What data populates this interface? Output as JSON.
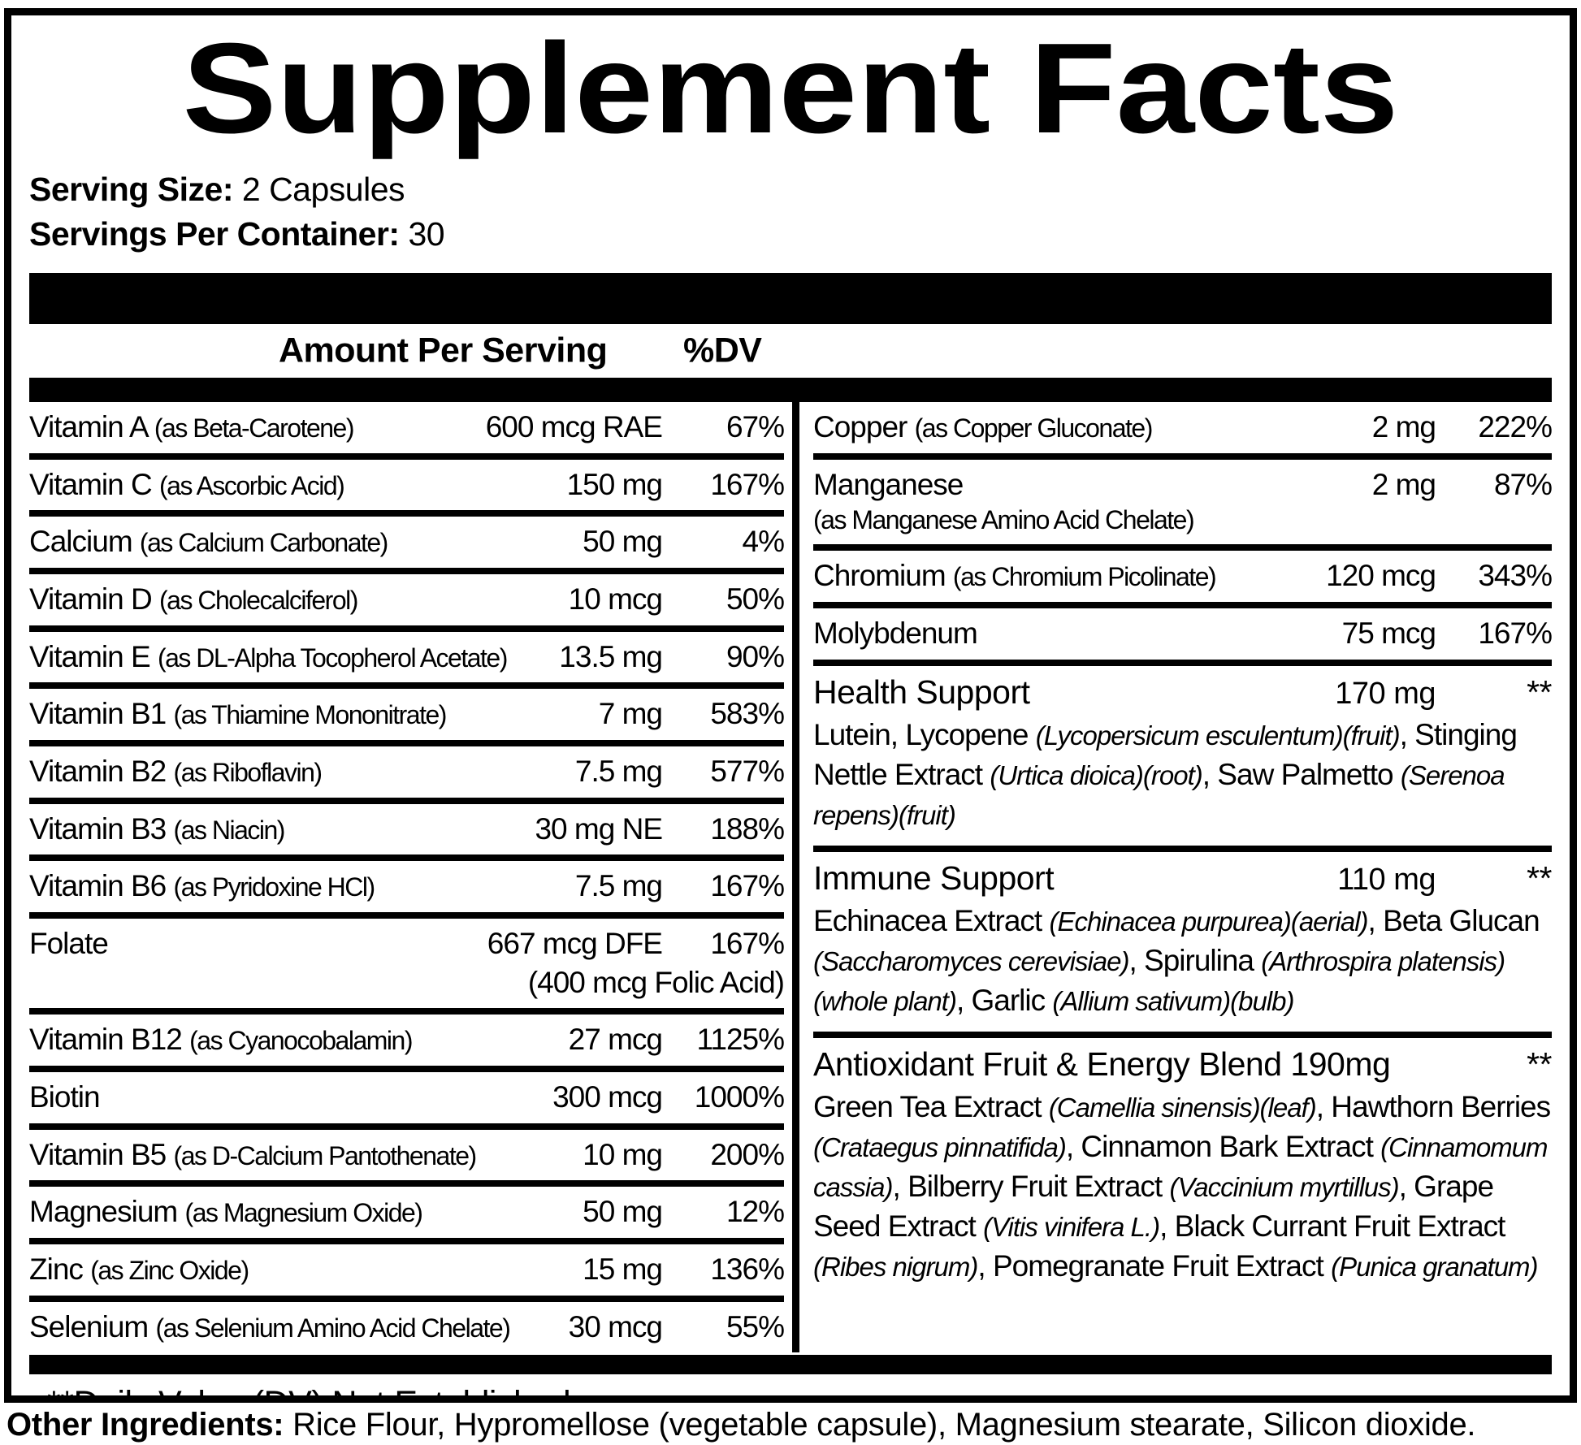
{
  "title": "Supplement Facts",
  "serving": {
    "size_label": "Serving Size:",
    "size_value": " 2 Capsules",
    "container_label": "Servings Per Container:",
    "container_value": " 30"
  },
  "table_header": {
    "amount": "Amount Per Serving",
    "dv": "%DV"
  },
  "left_column": [
    {
      "name": "Vitamin A",
      "note": "(as Beta-Carotene)",
      "amount": "600 mcg RAE",
      "dv": "67%"
    },
    {
      "name": "Vitamin C",
      "note": "(as Ascorbic Acid)",
      "amount": "150 mg",
      "dv": "167%"
    },
    {
      "name": "Calcium",
      "note": "(as Calcium Carbonate)",
      "amount": "50 mg",
      "dv": "4%"
    },
    {
      "name": "Vitamin D",
      "note": "(as Cholecalciferol)",
      "amount": "10 mcg",
      "dv": "50%"
    },
    {
      "name": "Vitamin E",
      "note": "(as DL-Alpha Tocopherol Acetate)",
      "amount": "13.5 mg",
      "dv": "90%"
    },
    {
      "name": "Vitamin B1",
      "note": "(as Thiamine Mononitrate)",
      "amount": "7 mg",
      "dv": "583%"
    },
    {
      "name": "Vitamin B2",
      "note": "(as Riboflavin)",
      "amount": "7.5 mg",
      "dv": "577%"
    },
    {
      "name": "Vitamin B3",
      "note": "(as Niacin)",
      "amount": "30 mg NE",
      "dv": "188%"
    },
    {
      "name": "Vitamin B6",
      "note": "(as Pyridoxine HCl)",
      "amount": "7.5 mg",
      "dv": "167%"
    },
    {
      "name": "Folate",
      "amount": "667 mcg DFE",
      "amount2": "(400 mcg Folic Acid)",
      "dv": "167%"
    },
    {
      "name": "Vitamin B12",
      "note": "(as Cyanocobalamin)",
      "amount": "27 mcg",
      "dv": "1125%"
    },
    {
      "name": "Biotin",
      "amount": "300 mcg",
      "dv": "1000%"
    },
    {
      "name": "Vitamin B5",
      "note": "(as D-Calcium Pantothenate)",
      "amount": "10 mg",
      "dv": "200%"
    },
    {
      "name": "Magnesium",
      "note": "(as Magnesium Oxide)",
      "amount": "50 mg",
      "dv": "12%"
    },
    {
      "name": "Zinc",
      "note": "(as Zinc Oxide)",
      "amount": "15 mg",
      "dv": "136%"
    },
    {
      "name": "Selenium",
      "note": "(as Selenium Amino Acid Chelate)",
      "amount": "30 mcg",
      "dv": "55%"
    }
  ],
  "right_column": [
    {
      "name": "Copper",
      "note": "(as Copper Gluconate)",
      "amount": "2 mg",
      "dv": "222%"
    },
    {
      "name": "Manganese",
      "name_line2": "(as Manganese Amino Acid Chelate)",
      "amount": "2 mg",
      "dv": "87%"
    },
    {
      "name": "Chromium",
      "note": "(as Chromium Picolinate)",
      "amount": "120 mcg",
      "dv": "343%"
    },
    {
      "name": "Molybdenum",
      "amount": "75 mcg",
      "dv": "167%"
    },
    {
      "name": "Health Support",
      "amount": "170 mg",
      "dv": "**",
      "description": [
        {
          "t": "Lutein, Lycopene "
        },
        {
          "t": "(Lycopersicum esculentum)(fruit)",
          "i": true
        },
        {
          "t": ", Stinging Nettle Extract "
        },
        {
          "t": "(Urtica dioica)(root)",
          "i": true
        },
        {
          "t": ", Saw Palmetto "
        },
        {
          "t": "(Serenoa repens)(fruit)",
          "i": true
        }
      ]
    },
    {
      "name": "Immune Support",
      "amount": "110 mg",
      "dv": "**",
      "description": [
        {
          "t": "Echinacea Extract "
        },
        {
          "t": "(Echinacea purpurea)(aerial)",
          "i": true
        },
        {
          "t": ", Beta Glucan "
        },
        {
          "t": "(Saccharomyces cerevisiae)",
          "i": true
        },
        {
          "t": ", Spirulina "
        },
        {
          "t": "(Arthrospira platensis)(whole plant)",
          "i": true
        },
        {
          "t": ", Garlic "
        },
        {
          "t": "(Allium sativum)(bulb)",
          "i": true
        }
      ]
    },
    {
      "name": "Antioxidant Fruit & Energy Blend 190mg",
      "dv": "**",
      "description": [
        {
          "t": "Green Tea Extract "
        },
        {
          "t": "(Camellia sinensis)(leaf)",
          "i": true
        },
        {
          "t": ", Hawthorn Berries "
        },
        {
          "t": "(Crataegus pinnatifida)",
          "i": true
        },
        {
          "t": ", Cinnamon Bark Extract "
        },
        {
          "t": "(Cinnamomum cassia)",
          "i": true
        },
        {
          "t": ", Bilberry Fruit Extract "
        },
        {
          "t": "(Vaccinium myrtillus)",
          "i": true
        },
        {
          "t": ", Grape Seed Extract "
        },
        {
          "t": "(Vitis vinifera L.)",
          "i": true
        },
        {
          "t": ", Black Currant Fruit Extract "
        },
        {
          "t": "(Ribes nigrum)",
          "i": true
        },
        {
          "t": ", Pomegranate Fruit Extract "
        },
        {
          "t": "(Punica granatum)",
          "i": true
        }
      ]
    }
  ],
  "footnote": "**Daily Value (DV) Not Established",
  "other_ingredients": {
    "label": "Other Ingredients:",
    "value": " Rice Flour, Hypromellose (vegetable capsule), Magnesium stearate, Silicon dioxide."
  }
}
